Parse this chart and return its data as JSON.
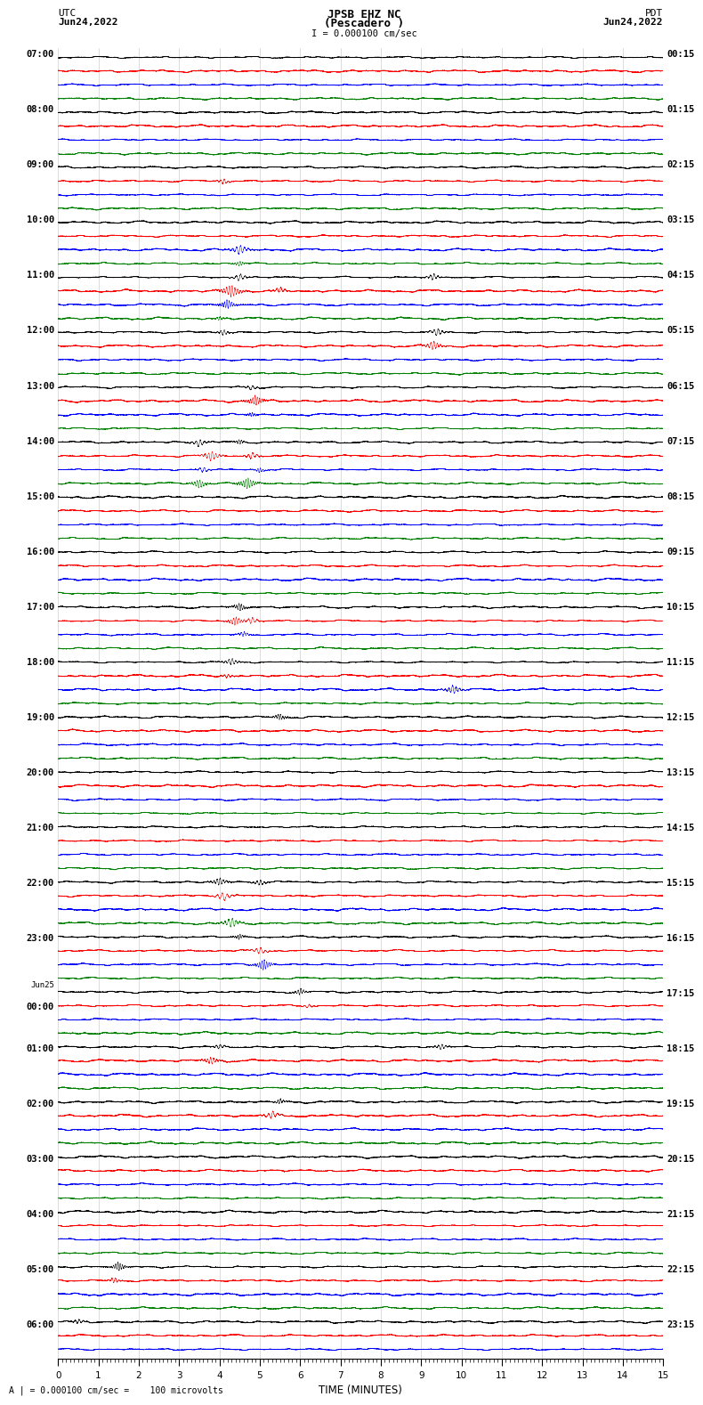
{
  "title_line1": "JPSB EHZ NC",
  "title_line2": "(Pescadero )",
  "scale_label": "I = 0.000100 cm/sec",
  "footer_label": "A | = 0.000100 cm/sec =    100 microvolts",
  "xlabel": "TIME (MINUTES)",
  "xlim": [
    0,
    15
  ],
  "background_color": "#ffffff",
  "trace_colors": [
    "#000000",
    "#ff0000",
    "#0000ff",
    "#008000"
  ],
  "n_rows": 95,
  "fig_width": 8.5,
  "fig_height": 16.13,
  "left_times": [
    "07:00",
    "",
    "",
    "",
    "08:00",
    "",
    "",
    "",
    "09:00",
    "",
    "",
    "",
    "10:00",
    "",
    "",
    "",
    "11:00",
    "",
    "",
    "",
    "12:00",
    "",
    "",
    "",
    "13:00",
    "",
    "",
    "",
    "14:00",
    "",
    "",
    "",
    "15:00",
    "",
    "",
    "",
    "16:00",
    "",
    "",
    "",
    "17:00",
    "",
    "",
    "",
    "18:00",
    "",
    "",
    "",
    "19:00",
    "",
    "",
    "",
    "20:00",
    "",
    "",
    "",
    "21:00",
    "",
    "",
    "",
    "22:00",
    "",
    "",
    "",
    "23:00",
    "",
    "",
    "",
    "Jun25",
    "00:00",
    "",
    "",
    "01:00",
    "",
    "",
    "",
    "02:00",
    "",
    "",
    "",
    "03:00",
    "",
    "",
    "",
    "04:00",
    "",
    "",
    "",
    "05:00",
    "",
    "",
    "",
    "06:00",
    "",
    ""
  ],
  "right_times": [
    "00:15",
    "",
    "",
    "",
    "01:15",
    "",
    "",
    "",
    "02:15",
    "",
    "",
    "",
    "03:15",
    "",
    "",
    "",
    "04:15",
    "",
    "",
    "",
    "05:15",
    "",
    "",
    "",
    "06:15",
    "",
    "",
    "",
    "07:15",
    "",
    "",
    "",
    "08:15",
    "",
    "",
    "",
    "09:15",
    "",
    "",
    "",
    "10:15",
    "",
    "",
    "",
    "11:15",
    "",
    "",
    "",
    "12:15",
    "",
    "",
    "",
    "13:15",
    "",
    "",
    "",
    "14:15",
    "",
    "",
    "",
    "15:15",
    "",
    "",
    "",
    "16:15",
    "",
    "",
    "",
    "17:15",
    "",
    "",
    "",
    "18:15",
    "",
    "",
    "",
    "19:15",
    "",
    "",
    "",
    "20:15",
    "",
    "",
    "",
    "21:15",
    "",
    "",
    "",
    "22:15",
    "",
    "",
    "",
    "23:15",
    "",
    ""
  ]
}
